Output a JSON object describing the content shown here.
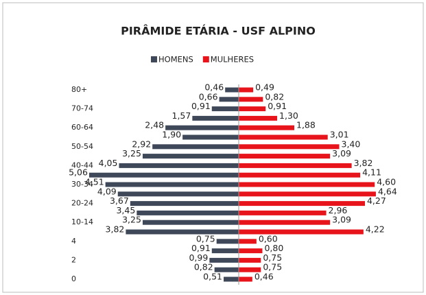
{
  "chart_data": {
    "type": "pyramid",
    "title": "PIRÂMIDE ETÁRIA - USF ALPINO",
    "categories": [
      "80+",
      null,
      "70-74",
      null,
      "60-64",
      null,
      "50-54",
      null,
      "40-44",
      null,
      "30-34",
      null,
      "20-24",
      null,
      "10-14",
      null,
      "4",
      null,
      "2",
      null,
      "0"
    ],
    "series": [
      {
        "name": "HOMENS",
        "color": "#3e4859",
        "side": "left",
        "values": [
          0.46,
          0.66,
          0.91,
          1.57,
          2.48,
          1.9,
          2.92,
          3.25,
          4.05,
          5.06,
          4.51,
          4.09,
          3.67,
          3.45,
          3.25,
          3.82,
          0.75,
          0.91,
          0.99,
          0.82,
          0.51
        ],
        "value_labels": [
          "0,46",
          "0,66",
          "0,91",
          "1,57",
          "2,48",
          "1,90",
          "2,92",
          "3,25",
          "4,05",
          "5,06",
          "4,51",
          "4,09",
          "3,67",
          "3,45",
          "3,25",
          "3,82",
          "0,75",
          "0,91",
          "0,99",
          "0,82",
          "0,51"
        ]
      },
      {
        "name": "MULHERES",
        "color": "#e8141b",
        "side": "right",
        "values": [
          0.49,
          0.82,
          0.91,
          1.3,
          1.88,
          3.01,
          3.4,
          3.09,
          3.82,
          4.11,
          4.6,
          4.64,
          4.27,
          2.96,
          3.09,
          4.22,
          0.6,
          0.8,
          0.75,
          0.75,
          0.46
        ],
        "value_labels": [
          "0,49",
          "0,82",
          "0,91",
          "1,30",
          "1,88",
          "3,01",
          "3,40",
          "3,09",
          "3,82",
          "4,11",
          "4,60",
          "4,64",
          "4,27",
          "2,96",
          "3,09",
          "4,22",
          "0,60",
          "0,80",
          "0,75",
          "0,75",
          "0,46"
        ]
      }
    ],
    "xlim": [
      0,
      5.5
    ]
  }
}
